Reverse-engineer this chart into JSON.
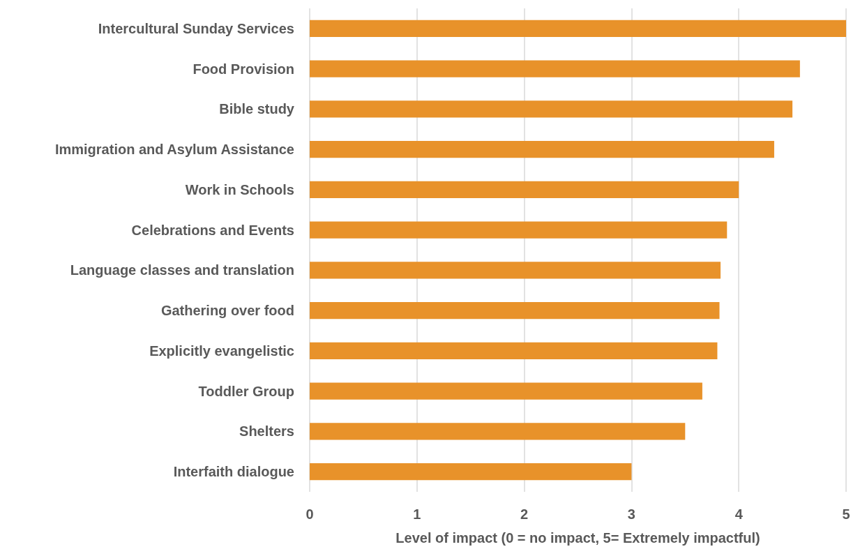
{
  "chart_data": {
    "type": "bar",
    "orientation": "horizontal",
    "xlabel": "Level of impact (0 = no impact, 5= Extremely impactful)",
    "categories": [
      "Intercultural Sunday Services",
      "Food Provision",
      "Bible study",
      "Immigration and Asylum Assistance",
      "Work in Schools",
      "Celebrations and Events",
      "Language classes and translation",
      "Gathering over food",
      "Explicitly evangelistic",
      "Toddler Group",
      "Shelters",
      "Interfaith dialogue"
    ],
    "values": [
      5,
      4.57,
      4.5,
      4.33,
      4.0,
      3.89,
      3.83,
      3.82,
      3.8,
      3.66,
      3.5,
      3.0
    ],
    "color": "#e8922a",
    "xlim": [
      0,
      5
    ],
    "xticks": [
      0,
      1,
      2,
      3,
      4,
      5
    ],
    "grid": "x"
  }
}
